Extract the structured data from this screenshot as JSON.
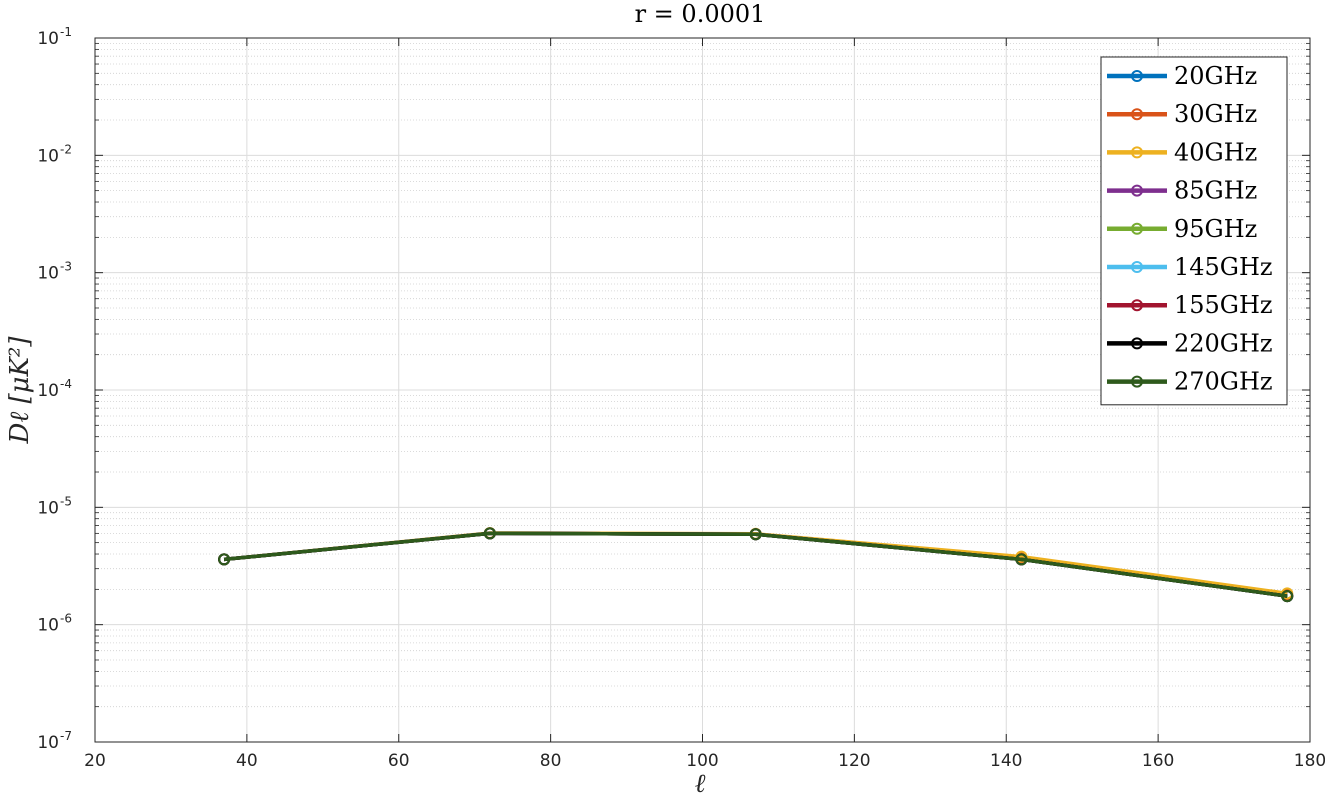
{
  "chart_data": {
    "type": "line",
    "title": "r = 0.0001",
    "xlabel": "ℓ",
    "ylabel": "Dℓ [μK²]",
    "xlim": [
      20,
      180
    ],
    "ylim": [
      1e-07,
      0.1
    ],
    "yscale": "log",
    "grid": true,
    "legend_position": "top-right",
    "x_ticks": [
      "20",
      "40",
      "60",
      "80",
      "100",
      "120",
      "140",
      "160",
      "180"
    ],
    "y_ticks": [
      {
        "base": "10",
        "exp": "-7"
      },
      {
        "base": "10",
        "exp": "-6"
      },
      {
        "base": "10",
        "exp": "-5"
      },
      {
        "base": "10",
        "exp": "-4"
      },
      {
        "base": "10",
        "exp": "-3"
      },
      {
        "base": "10",
        "exp": "-2"
      },
      {
        "base": "10",
        "exp": "-1"
      }
    ],
    "x": [
      37,
      72,
      107,
      142,
      177
    ],
    "series": [
      {
        "name": "20GHz",
        "color": "#0072BD",
        "values": [
          3.6e-06,
          6e-06,
          5.9e-06,
          3.6e-06,
          1.75e-06
        ]
      },
      {
        "name": "30GHz",
        "color": "#D95319",
        "values": [
          3.6e-06,
          6e-06,
          5.9e-06,
          3.7e-06,
          1.8e-06
        ]
      },
      {
        "name": "40GHz",
        "color": "#EDB120",
        "values": [
          3.6e-06,
          6.05e-06,
          5.95e-06,
          3.8e-06,
          1.85e-06
        ]
      },
      {
        "name": "85GHz",
        "color": "#7E2F8E",
        "values": [
          3.6e-06,
          6e-06,
          5.9e-06,
          3.6e-06,
          1.75e-06
        ]
      },
      {
        "name": "95GHz",
        "color": "#77AC30",
        "values": [
          3.6e-06,
          6e-06,
          5.9e-06,
          3.6e-06,
          1.75e-06
        ]
      },
      {
        "name": "145GHz",
        "color": "#4DBEEE",
        "values": [
          3.6e-06,
          6e-06,
          5.9e-06,
          3.6e-06,
          1.75e-06
        ]
      },
      {
        "name": "155GHz",
        "color": "#A2142F",
        "values": [
          3.6e-06,
          6e-06,
          5.9e-06,
          3.6e-06,
          1.75e-06
        ]
      },
      {
        "name": "220GHz",
        "color": "#000000",
        "values": [
          3.6e-06,
          6e-06,
          5.9e-06,
          3.6e-06,
          1.75e-06
        ]
      },
      {
        "name": "270GHz",
        "color": "#2E5A1C",
        "values": [
          3.6e-06,
          6e-06,
          5.9e-06,
          3.6e-06,
          1.75e-06
        ]
      }
    ]
  }
}
